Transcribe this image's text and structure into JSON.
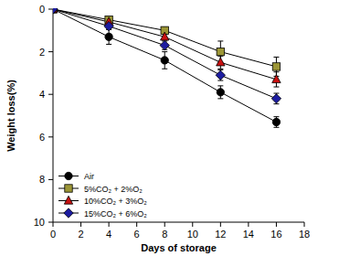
{
  "chart_data": {
    "type": "line",
    "x_label": "Days of storage",
    "y_label": "Weight loss(%)",
    "x": [
      0,
      4,
      8,
      12,
      16
    ],
    "xlim": [
      0,
      18
    ],
    "xticks": [
      0,
      2,
      4,
      6,
      8,
      10,
      12,
      14,
      16,
      18
    ],
    "ylim": [
      10,
      0
    ],
    "yticks": [
      0,
      2,
      4,
      6,
      8,
      10
    ],
    "legend": "lower left",
    "series": [
      {
        "name": "Air",
        "color": "#000000",
        "marker": "circle",
        "values": [
          0,
          1.3,
          2.4,
          3.9,
          5.3
        ],
        "errors": [
          0.1,
          0.35,
          0.4,
          0.3,
          0.25
        ]
      },
      {
        "name": "5%CO₂ + 2%O₂",
        "color": "#9c9636",
        "marker": "square",
        "values": [
          0,
          0.5,
          1.0,
          2.0,
          2.7
        ],
        "errors": [
          0.05,
          0.1,
          0.15,
          0.5,
          0.45
        ]
      },
      {
        "name": "10%CO₂ + 3%O₂",
        "color": "#c81010",
        "marker": "triangle",
        "values": [
          0,
          0.6,
          1.3,
          2.5,
          3.3
        ],
        "errors": [
          0.05,
          0.1,
          0.15,
          0.3,
          0.35
        ]
      },
      {
        "name": "15%CO₂ + 6%O₂",
        "color": "#1c1ca0",
        "marker": "diamond",
        "values": [
          0,
          0.8,
          1.7,
          3.1,
          4.2
        ],
        "errors": [
          0.05,
          0.15,
          0.2,
          0.25,
          0.25
        ]
      }
    ]
  }
}
